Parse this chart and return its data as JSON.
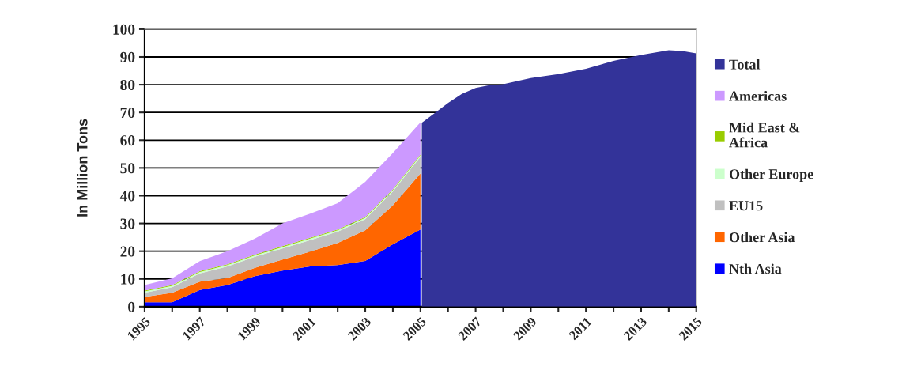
{
  "chart_data": {
    "type": "area",
    "ylabel": "In Million Tons",
    "stacked": true,
    "legend": "right",
    "grid": "y",
    "x": [
      1995,
      1996,
      1997,
      1998,
      1999,
      2000,
      2001,
      2002,
      2003,
      2004,
      2005,
      2005.05,
      2005.5,
      2006,
      2006.5,
      2007,
      2007.5,
      2008,
      2009,
      2010,
      2011,
      2012,
      2013,
      2014,
      2014.5,
      2015
    ],
    "xlim": [
      1995,
      2015
    ],
    "xticks": [
      1995,
      {
        "value": 1996,
        "label": null
      },
      1997,
      {
        "value": 1998,
        "label": null
      },
      1999,
      {
        "value": 2000,
        "label": null
      },
      2001,
      {
        "value": 2002,
        "label": null
      },
      2003,
      {
        "value": 2004,
        "label": null
      },
      2005,
      {
        "value": 2006,
        "label": null
      },
      2007,
      {
        "value": 2008,
        "label": null
      },
      2009,
      {
        "value": 2010,
        "label": null
      },
      2011,
      {
        "value": 2012,
        "label": null
      },
      2013,
      {
        "value": 2014,
        "label": null
      },
      2015
    ],
    "ylim": [
      0,
      100
    ],
    "yticks": [
      0,
      10,
      20,
      30,
      40,
      50,
      60,
      70,
      80,
      90,
      100
    ],
    "series": [
      {
        "name": "Nth Asia",
        "color": "#0000ff",
        "values": [
          1.6,
          1.6,
          6,
          7.8,
          11,
          13,
          14.5,
          15,
          16.5,
          22.5,
          27.8,
          null,
          null,
          null,
          null,
          null,
          null,
          null,
          null,
          null,
          null,
          null,
          null,
          null,
          null,
          null
        ]
      },
      {
        "name": "Other Asia",
        "color": "#ff6600",
        "values": [
          1.9,
          3.4,
          3,
          2.5,
          3,
          4,
          5.3,
          8,
          11,
          14,
          20.2,
          null,
          null,
          null,
          null,
          null,
          null,
          null,
          null,
          null,
          null,
          null,
          null,
          null,
          null,
          null
        ]
      },
      {
        "name": "EU15",
        "color": "#c0c0c0",
        "values": [
          1.5,
          2,
          3,
          4.2,
          4,
          4,
          4.2,
          4,
          4,
          5,
          6,
          null,
          null,
          null,
          null,
          null,
          null,
          null,
          null,
          null,
          null,
          null,
          null,
          null,
          null,
          null
        ]
      },
      {
        "name": "Other Europe",
        "color": "#ccffcc",
        "values": [
          0.5,
          0.5,
          0.5,
          0.5,
          0.5,
          0.5,
          0.5,
          0.5,
          0.5,
          0.5,
          0.5,
          null,
          null,
          null,
          null,
          null,
          null,
          null,
          null,
          null,
          null,
          null,
          null,
          null,
          null,
          null
        ]
      },
      {
        "name": "Mid East & Africa",
        "color": "#99cc00",
        "values": [
          0.3,
          0.3,
          0.3,
          0.3,
          0.3,
          0.3,
          0.3,
          0.3,
          0.3,
          0.3,
          0.3,
          null,
          null,
          null,
          null,
          null,
          null,
          null,
          null,
          null,
          null,
          null,
          null,
          null,
          null,
          null
        ]
      },
      {
        "name": "Americas",
        "color": "#cc99ff",
        "values": [
          2.0,
          2.4,
          3.6,
          4.7,
          5.7,
          8.2,
          8.7,
          9.5,
          12.7,
          13.1,
          11.6,
          null,
          null,
          null,
          null,
          null,
          null,
          null,
          null,
          null,
          null,
          null,
          null,
          null,
          null,
          null
        ]
      },
      {
        "name": "Total",
        "color": "#333399",
        "values": [
          null,
          null,
          null,
          null,
          null,
          null,
          null,
          null,
          null,
          null,
          null,
          66.3,
          69.6,
          73.4,
          76.7,
          78.8,
          79.8,
          80.2,
          82.4,
          83.8,
          85.7,
          88.6,
          90.7,
          92.4,
          92.1,
          91.3
        ]
      }
    ]
  }
}
